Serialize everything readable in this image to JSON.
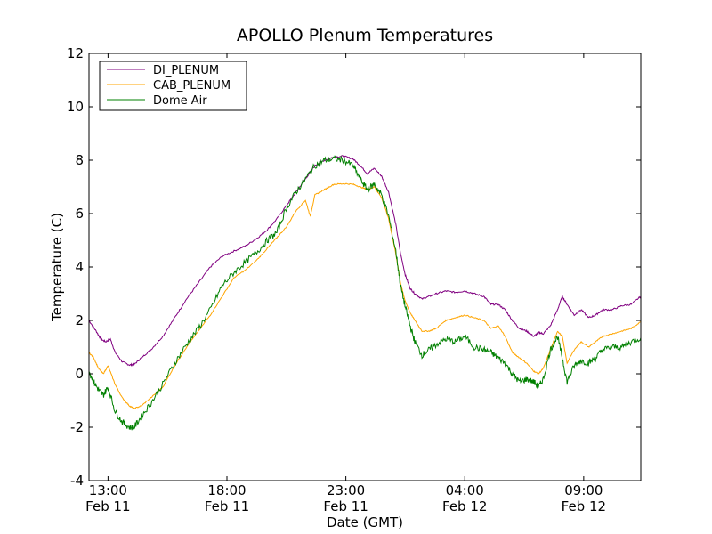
{
  "chart_data": {
    "type": "line",
    "title": "APOLLO Plenum Temperatures",
    "xlabel": "Date (GMT)",
    "ylabel": "Temperature (C)",
    "xlim_hours": [
      12.2,
      35.4
    ],
    "ylim": [
      -4,
      12
    ],
    "yticks": [
      -4,
      -2,
      0,
      2,
      4,
      6,
      8,
      10,
      12
    ],
    "xticks": [
      {
        "hour": 13,
        "time": "13:00",
        "date": "Feb 11"
      },
      {
        "hour": 18,
        "time": "18:00",
        "date": "Feb 11"
      },
      {
        "hour": 23,
        "time": "23:00",
        "date": "Feb 11"
      },
      {
        "hour": 28,
        "time": "04:00",
        "date": "Feb 12"
      },
      {
        "hour": 33,
        "time": "09:00",
        "date": "Feb 12"
      }
    ],
    "legend_position": "top-left",
    "grid": false,
    "series": [
      {
        "name": "DI_PLENUM",
        "color": "#800080",
        "points": [
          [
            12.2,
            2.0
          ],
          [
            12.5,
            1.6
          ],
          [
            12.7,
            1.3
          ],
          [
            12.9,
            1.2
          ],
          [
            13.1,
            1.3
          ],
          [
            13.3,
            0.8
          ],
          [
            13.6,
            0.45
          ],
          [
            13.9,
            0.33
          ],
          [
            14.1,
            0.35
          ],
          [
            14.4,
            0.6
          ],
          [
            14.8,
            0.9
          ],
          [
            15.3,
            1.4
          ],
          [
            15.8,
            2.1
          ],
          [
            16.3,
            2.8
          ],
          [
            16.8,
            3.4
          ],
          [
            17.3,
            4.0
          ],
          [
            17.8,
            4.4
          ],
          [
            18.3,
            4.6
          ],
          [
            18.8,
            4.8
          ],
          [
            19.3,
            5.1
          ],
          [
            19.7,
            5.4
          ],
          [
            20.1,
            5.8
          ],
          [
            20.5,
            6.3
          ],
          [
            20.9,
            6.8
          ],
          [
            21.3,
            7.3
          ],
          [
            21.7,
            7.8
          ],
          [
            22.1,
            8.0
          ],
          [
            22.5,
            8.12
          ],
          [
            22.9,
            8.15
          ],
          [
            23.3,
            8.05
          ],
          [
            23.6,
            7.8
          ],
          [
            23.9,
            7.5
          ],
          [
            24.2,
            7.7
          ],
          [
            24.5,
            7.4
          ],
          [
            24.8,
            6.8
          ],
          [
            25.1,
            5.6
          ],
          [
            25.3,
            4.5
          ],
          [
            25.5,
            3.7
          ],
          [
            25.7,
            3.2
          ],
          [
            25.9,
            3.0
          ],
          [
            26.2,
            2.8
          ],
          [
            26.5,
            2.9
          ],
          [
            26.8,
            3.0
          ],
          [
            27.2,
            3.1
          ],
          [
            27.6,
            3.05
          ],
          [
            28.0,
            3.1
          ],
          [
            28.4,
            3.0
          ],
          [
            28.8,
            2.9
          ],
          [
            29.1,
            2.6
          ],
          [
            29.4,
            2.6
          ],
          [
            29.7,
            2.4
          ],
          [
            30.0,
            2.0
          ],
          [
            30.3,
            1.7
          ],
          [
            30.6,
            1.6
          ],
          [
            30.9,
            1.4
          ],
          [
            31.1,
            1.55
          ],
          [
            31.3,
            1.5
          ],
          [
            31.6,
            1.8
          ],
          [
            31.9,
            2.4
          ],
          [
            32.1,
            2.9
          ],
          [
            32.3,
            2.6
          ],
          [
            32.6,
            2.2
          ],
          [
            32.9,
            2.4
          ],
          [
            33.2,
            2.1
          ],
          [
            33.5,
            2.2
          ],
          [
            33.8,
            2.4
          ],
          [
            34.2,
            2.4
          ],
          [
            34.6,
            2.55
          ],
          [
            35.0,
            2.6
          ],
          [
            35.4,
            2.9
          ]
        ]
      },
      {
        "name": "CAB_PLENUM",
        "color": "#ffa500",
        "points": [
          [
            12.2,
            0.8
          ],
          [
            12.4,
            0.6
          ],
          [
            12.6,
            0.2
          ],
          [
            12.8,
            0.0
          ],
          [
            13.0,
            0.3
          ],
          [
            13.3,
            -0.4
          ],
          [
            13.6,
            -0.9
          ],
          [
            13.9,
            -1.2
          ],
          [
            14.1,
            -1.3
          ],
          [
            14.4,
            -1.2
          ],
          [
            14.8,
            -0.9
          ],
          [
            15.3,
            -0.5
          ],
          [
            15.8,
            0.3
          ],
          [
            16.3,
            1.0
          ],
          [
            16.8,
            1.6
          ],
          [
            17.3,
            2.2
          ],
          [
            17.8,
            2.9
          ],
          [
            18.3,
            3.6
          ],
          [
            18.8,
            3.9
          ],
          [
            19.3,
            4.3
          ],
          [
            19.7,
            4.7
          ],
          [
            20.1,
            5.1
          ],
          [
            20.5,
            5.5
          ],
          [
            20.9,
            6.1
          ],
          [
            21.3,
            6.5
          ],
          [
            21.5,
            5.9
          ],
          [
            21.7,
            6.7
          ],
          [
            22.1,
            6.9
          ],
          [
            22.5,
            7.1
          ],
          [
            22.9,
            7.12
          ],
          [
            23.3,
            7.1
          ],
          [
            23.6,
            7.0
          ],
          [
            23.9,
            6.9
          ],
          [
            24.2,
            7.0
          ],
          [
            24.5,
            6.6
          ],
          [
            24.8,
            5.8
          ],
          [
            25.1,
            4.5
          ],
          [
            25.3,
            3.4
          ],
          [
            25.5,
            2.7
          ],
          [
            25.7,
            2.3
          ],
          [
            25.9,
            2.0
          ],
          [
            26.2,
            1.6
          ],
          [
            26.5,
            1.6
          ],
          [
            26.8,
            1.7
          ],
          [
            27.2,
            2.0
          ],
          [
            27.6,
            2.1
          ],
          [
            28.0,
            2.2
          ],
          [
            28.4,
            2.1
          ],
          [
            28.8,
            2.0
          ],
          [
            29.1,
            1.7
          ],
          [
            29.4,
            1.8
          ],
          [
            29.7,
            1.4
          ],
          [
            30.0,
            0.8
          ],
          [
            30.3,
            0.6
          ],
          [
            30.6,
            0.4
          ],
          [
            30.9,
            0.1
          ],
          [
            31.1,
            0.0
          ],
          [
            31.3,
            0.2
          ],
          [
            31.6,
            0.9
          ],
          [
            31.9,
            1.6
          ],
          [
            32.1,
            1.4
          ],
          [
            32.3,
            0.4
          ],
          [
            32.6,
            0.9
          ],
          [
            32.9,
            1.2
          ],
          [
            33.2,
            1.0
          ],
          [
            33.5,
            1.2
          ],
          [
            33.8,
            1.4
          ],
          [
            34.2,
            1.5
          ],
          [
            34.6,
            1.6
          ],
          [
            35.0,
            1.7
          ],
          [
            35.4,
            1.95
          ]
        ]
      },
      {
        "name": "Dome Air",
        "color": "#008000",
        "points": [
          [
            12.2,
            0.1
          ],
          [
            12.4,
            -0.3
          ],
          [
            12.6,
            -0.6
          ],
          [
            12.8,
            -0.8
          ],
          [
            13.0,
            -0.5
          ],
          [
            13.3,
            -1.4
          ],
          [
            13.6,
            -1.8
          ],
          [
            13.9,
            -2.0
          ],
          [
            14.1,
            -2.0
          ],
          [
            14.4,
            -1.6
          ],
          [
            14.8,
            -1.1
          ],
          [
            15.3,
            -0.4
          ],
          [
            15.8,
            0.4
          ],
          [
            16.3,
            1.1
          ],
          [
            16.8,
            1.7
          ],
          [
            17.3,
            2.4
          ],
          [
            17.8,
            3.3
          ],
          [
            18.3,
            3.8
          ],
          [
            18.8,
            4.2
          ],
          [
            19.3,
            4.6
          ],
          [
            19.7,
            5.0
          ],
          [
            20.1,
            5.3
          ],
          [
            20.5,
            6.2
          ],
          [
            20.9,
            6.8
          ],
          [
            21.3,
            7.3
          ],
          [
            21.7,
            7.8
          ],
          [
            22.1,
            8.0
          ],
          [
            22.5,
            8.05
          ],
          [
            22.9,
            8.0
          ],
          [
            23.3,
            7.8
          ],
          [
            23.6,
            7.3
          ],
          [
            23.9,
            6.9
          ],
          [
            24.2,
            7.1
          ],
          [
            24.5,
            6.7
          ],
          [
            24.8,
            5.9
          ],
          [
            25.1,
            4.6
          ],
          [
            25.3,
            3.3
          ],
          [
            25.5,
            2.5
          ],
          [
            25.7,
            1.8
          ],
          [
            25.9,
            1.2
          ],
          [
            26.2,
            0.7
          ],
          [
            26.5,
            0.9
          ],
          [
            26.8,
            1.1
          ],
          [
            27.2,
            1.3
          ],
          [
            27.6,
            1.2
          ],
          [
            28.0,
            1.4
          ],
          [
            28.4,
            1.0
          ],
          [
            28.8,
            0.9
          ],
          [
            29.1,
            0.8
          ],
          [
            29.4,
            0.6
          ],
          [
            29.7,
            0.4
          ],
          [
            30.0,
            0.0
          ],
          [
            30.3,
            -0.3
          ],
          [
            30.6,
            -0.2
          ],
          [
            30.9,
            -0.3
          ],
          [
            31.1,
            -0.5
          ],
          [
            31.3,
            -0.2
          ],
          [
            31.6,
            0.9
          ],
          [
            31.9,
            1.4
          ],
          [
            32.1,
            0.6
          ],
          [
            32.3,
            -0.3
          ],
          [
            32.6,
            0.3
          ],
          [
            32.9,
            0.5
          ],
          [
            33.2,
            0.4
          ],
          [
            33.5,
            0.6
          ],
          [
            33.8,
            0.9
          ],
          [
            34.2,
            1.0
          ],
          [
            34.6,
            1.0
          ],
          [
            35.0,
            1.2
          ],
          [
            35.4,
            1.35
          ]
        ]
      }
    ]
  }
}
